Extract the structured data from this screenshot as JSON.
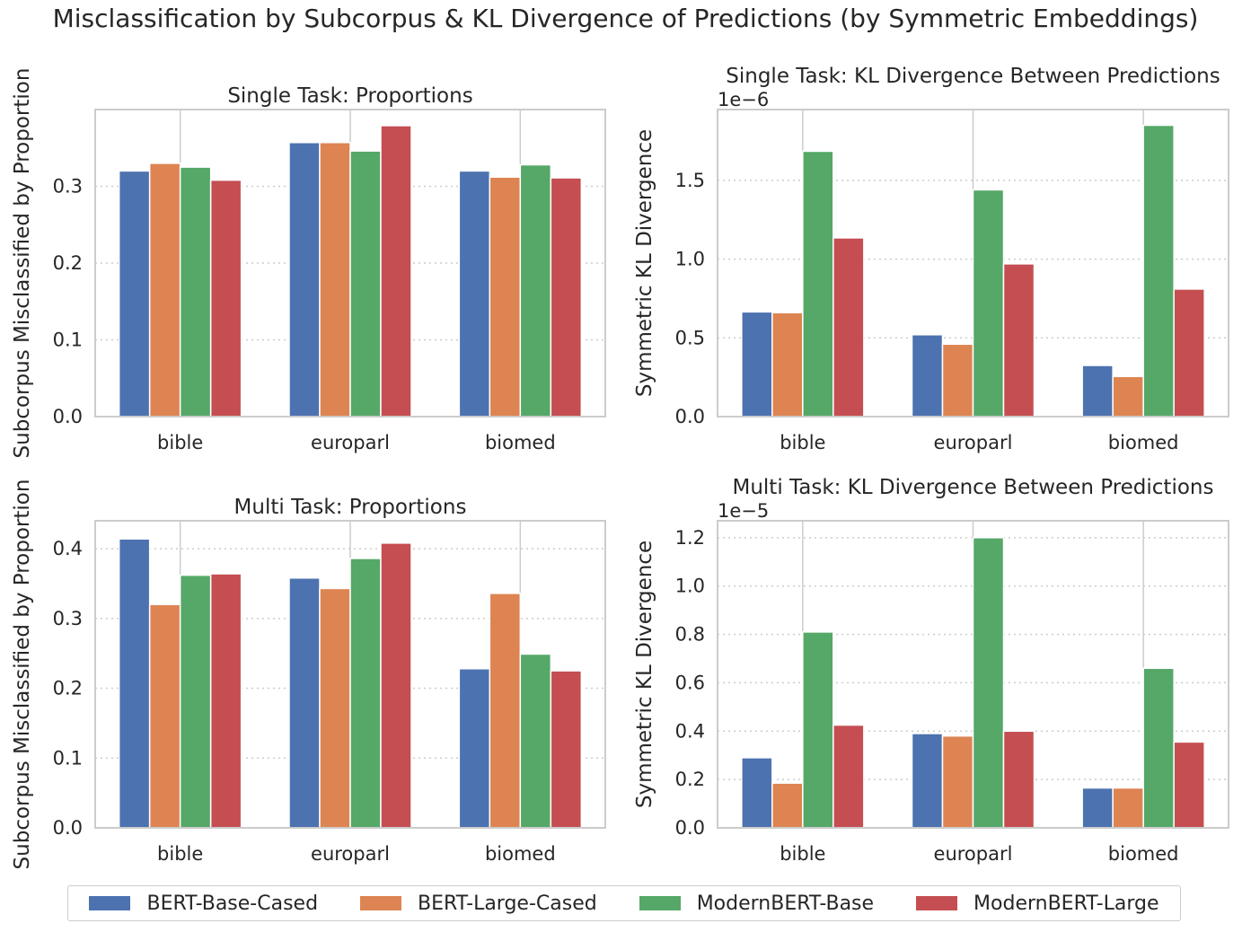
{
  "suptitle": "Misclassification by Subcorpus & KL Divergence of Predictions (by Symmetric Embeddings)",
  "legend": {
    "placement": "bottom-center",
    "items": [
      {
        "label": "BERT-Base-Cased",
        "color": "#4c72b0"
      },
      {
        "label": "BERT-Large-Cased",
        "color": "#dd8452"
      },
      {
        "label": "ModernBERT-Base",
        "color": "#55a868"
      },
      {
        "label": "ModernBERT-Large",
        "color": "#c44e52"
      }
    ]
  },
  "chart_data": [
    {
      "type": "bar",
      "title": "Single Task: Proportions",
      "xlabel": "",
      "ylabel": "Subcorpus Misclassified by Proportion",
      "categories": [
        "bible",
        "europarl",
        "biomed"
      ],
      "ylim": [
        0,
        0.4
      ],
      "yticks": [
        0.0,
        0.1,
        0.2,
        0.3
      ],
      "ytick_labels": [
        "0.0",
        "0.1",
        "0.2",
        "0.3"
      ],
      "offset_text": "",
      "grid": "horizontal dotted",
      "series": [
        {
          "name": "BERT-Base-Cased",
          "values": [
            0.32,
            0.357,
            0.32
          ]
        },
        {
          "name": "BERT-Large-Cased",
          "values": [
            0.33,
            0.357,
            0.312
          ]
        },
        {
          "name": "ModernBERT-Base",
          "values": [
            0.325,
            0.346,
            0.328
          ]
        },
        {
          "name": "ModernBERT-Large",
          "values": [
            0.308,
            0.379,
            0.311
          ]
        }
      ]
    },
    {
      "type": "bar",
      "title": "Single Task: KL Divergence Between Predictions",
      "xlabel": "",
      "ylabel": "Symmetric KL Divergence",
      "categories": [
        "bible",
        "europarl",
        "biomed"
      ],
      "ylim": [
        0,
        1.95
      ],
      "yticks": [
        0.0,
        0.5,
        1.0,
        1.5
      ],
      "ytick_labels": [
        "0.0",
        "0.5",
        "1.0",
        "1.5"
      ],
      "offset_text": "1e−6",
      "grid": "horizontal dotted",
      "series": [
        {
          "name": "BERT-Base-Cased",
          "values": [
            0.665,
            0.52,
            0.325
          ]
        },
        {
          "name": "BERT-Large-Cased",
          "values": [
            0.66,
            0.46,
            0.255
          ]
        },
        {
          "name": "ModernBERT-Base",
          "values": [
            1.685,
            1.44,
            1.85
          ]
        },
        {
          "name": "ModernBERT-Large",
          "values": [
            1.135,
            0.97,
            0.81
          ]
        }
      ]
    },
    {
      "type": "bar",
      "title": "Multi Task: Proportions",
      "xlabel": "",
      "ylabel": "Subcorpus Misclassified by Proportion",
      "categories": [
        "bible",
        "europarl",
        "biomed"
      ],
      "ylim": [
        0,
        0.44
      ],
      "yticks": [
        0.0,
        0.1,
        0.2,
        0.3,
        0.4
      ],
      "ytick_labels": [
        "0.0",
        "0.1",
        "0.2",
        "0.3",
        "0.4"
      ],
      "offset_text": "",
      "grid": "horizontal dotted",
      "series": [
        {
          "name": "BERT-Base-Cased",
          "values": [
            0.414,
            0.358,
            0.228
          ]
        },
        {
          "name": "BERT-Large-Cased",
          "values": [
            0.32,
            0.343,
            0.336
          ]
        },
        {
          "name": "ModernBERT-Base",
          "values": [
            0.362,
            0.386,
            0.249
          ]
        },
        {
          "name": "ModernBERT-Large",
          "values": [
            0.364,
            0.408,
            0.225
          ]
        }
      ]
    },
    {
      "type": "bar",
      "title": "Multi Task: KL Divergence Between Predictions",
      "xlabel": "",
      "ylabel": "Symmetric KL Divergence",
      "categories": [
        "bible",
        "europarl",
        "biomed"
      ],
      "ylim": [
        0,
        1.27
      ],
      "yticks": [
        0.0,
        0.2,
        0.4,
        0.6,
        0.8,
        1.0,
        1.2
      ],
      "ytick_labels": [
        "0.0",
        "0.2",
        "0.4",
        "0.6",
        "0.8",
        "1.0",
        "1.2"
      ],
      "offset_text": "1e−5",
      "grid": "horizontal dotted",
      "series": [
        {
          "name": "BERT-Base-Cased",
          "values": [
            0.29,
            0.39,
            0.165
          ]
        },
        {
          "name": "BERT-Large-Cased",
          "values": [
            0.185,
            0.38,
            0.165
          ]
        },
        {
          "name": "ModernBERT-Base",
          "values": [
            0.81,
            1.2,
            0.66
          ]
        },
        {
          "name": "ModernBERT-Large",
          "values": [
            0.425,
            0.4,
            0.355
          ]
        }
      ]
    }
  ]
}
